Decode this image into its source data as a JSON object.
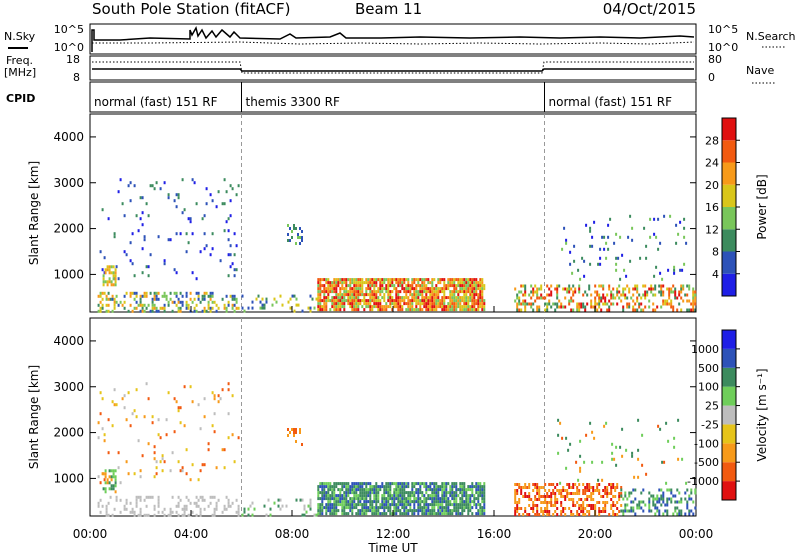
{
  "header": {
    "station": "South Pole Station (fitACF)",
    "beam": "Beam 11",
    "date": "04/Oct/2015"
  },
  "sky_panel": {
    "left_label": "N.Sky",
    "right_label": "N.Search",
    "left_ticks": [
      "10^5",
      "10^0"
    ],
    "right_ticks": [
      "10^5",
      "10^0"
    ]
  },
  "freq_panel": {
    "left_label_1": "Freq.",
    "left_label_2": "[MHz]",
    "right_label": "Nave",
    "left_ticks": [
      "18",
      "8"
    ],
    "right_ticks": [
      "80",
      "0"
    ]
  },
  "cpid": {
    "label": "CPID",
    "segments": [
      {
        "start_h": 0,
        "end_h": 6,
        "text": "normal (fast) 151 RF"
      },
      {
        "start_h": 6,
        "end_h": 18,
        "text": "themis 3300 RF"
      },
      {
        "start_h": 18,
        "end_h": 24,
        "text": "normal (fast) 151 RF"
      }
    ]
  },
  "chart_data": [
    {
      "type": "heatmap",
      "panel": "power",
      "ylabel": "Slant Range [km]",
      "xlim": [
        0,
        24
      ],
      "ylim": [
        180,
        4500
      ],
      "y_ticks": [
        1000,
        2000,
        3000,
        4000
      ],
      "colorbar_label": "Power [dB]",
      "colorbar_ticks": [
        "4",
        "8",
        "12",
        "16",
        "20",
        "24",
        "28"
      ],
      "colorbar_colors": [
        "#1f1fe6",
        "#2d52b8",
        "#3c8b5e",
        "#79c65a",
        "#d9c61a",
        "#f79a1a",
        "#f25a10",
        "#e01010"
      ],
      "scatter_regions": [
        {
          "x": [
            0.3,
            5.9
          ],
          "y": [
            220,
            620
          ],
          "density": 0.35,
          "levels": [
            1,
            2,
            3,
            4,
            5
          ]
        },
        {
          "x": [
            0.3,
            5.9
          ],
          "y": [
            900,
            3100
          ],
          "density": 0.05,
          "levels": [
            0,
            1,
            2
          ]
        },
        {
          "x": [
            0.5,
            1.0
          ],
          "y": [
            800,
            1200
          ],
          "density": 0.55,
          "levels": [
            3,
            4,
            5
          ]
        },
        {
          "x": [
            7.8,
            8.4
          ],
          "y": [
            1700,
            2100
          ],
          "density": 0.3,
          "levels": [
            1,
            2,
            3
          ]
        },
        {
          "x": [
            6.0,
            9.0
          ],
          "y": [
            220,
            560
          ],
          "density": 0.18,
          "levels": [
            1,
            2,
            3,
            4
          ]
        },
        {
          "x": [
            9.0,
            15.6
          ],
          "y": [
            240,
            920
          ],
          "density": 0.82,
          "levels": [
            3,
            4,
            5,
            6,
            7
          ]
        },
        {
          "x": [
            16.8,
            24
          ],
          "y": [
            230,
            780
          ],
          "density": 0.4,
          "levels": [
            2,
            3,
            4,
            5,
            6,
            7
          ]
        },
        {
          "x": [
            18.5,
            23.6
          ],
          "y": [
            900,
            2300
          ],
          "density": 0.06,
          "levels": [
            0,
            1,
            2,
            3
          ]
        }
      ]
    },
    {
      "type": "heatmap",
      "panel": "velocity",
      "xlabel": "Time UT",
      "ylabel": "Slant Range [km]",
      "xlim": [
        0,
        24
      ],
      "ylim": [
        180,
        4500
      ],
      "y_ticks": [
        1000,
        2000,
        3000,
        4000
      ],
      "x_ticks": [
        "00:00",
        "04:00",
        "08:00",
        "12:00",
        "16:00",
        "20:00",
        "00:00"
      ],
      "colorbar_label": "Velocity [m s⁻¹]",
      "colorbar_ticks": [
        "-1000",
        "-500",
        "-100",
        "-25",
        "25",
        "100",
        "500",
        "1000"
      ],
      "colorbar_colors": [
        "#e01010",
        "#f25a10",
        "#f79a1a",
        "#e6c41a",
        "#bdbdbd",
        "#6fce5a",
        "#3c8b5e",
        "#2d52b8",
        "#1f1fe6"
      ],
      "scatter_regions": [
        {
          "x": [
            0.3,
            5.9
          ],
          "y": [
            220,
            620
          ],
          "density": 0.28,
          "levels": [
            4
          ]
        },
        {
          "x": [
            0.3,
            5.9
          ],
          "y": [
            900,
            3100
          ],
          "density": 0.05,
          "levels": [
            1,
            2,
            3,
            4
          ]
        },
        {
          "x": [
            0.5,
            1.0
          ],
          "y": [
            700,
            1200
          ],
          "density": 0.5,
          "levels": [
            5,
            6,
            2
          ]
        },
        {
          "x": [
            7.8,
            8.4
          ],
          "y": [
            1700,
            2100
          ],
          "density": 0.3,
          "levels": [
            1,
            2
          ]
        },
        {
          "x": [
            6.0,
            9.0
          ],
          "y": [
            220,
            560
          ],
          "density": 0.15,
          "levels": [
            4,
            5,
            6
          ]
        },
        {
          "x": [
            9.0,
            15.6
          ],
          "y": [
            240,
            920
          ],
          "density": 0.82,
          "levels": [
            5,
            6,
            6,
            7
          ]
        },
        {
          "x": [
            16.8,
            21.0
          ],
          "y": [
            230,
            900
          ],
          "density": 0.5,
          "levels": [
            0,
            1,
            2,
            2
          ]
        },
        {
          "x": [
            21.0,
            24
          ],
          "y": [
            230,
            780
          ],
          "density": 0.4,
          "levels": [
            5,
            6,
            7
          ]
        },
        {
          "x": [
            18.5,
            23.6
          ],
          "y": [
            900,
            2300
          ],
          "density": 0.06,
          "levels": [
            1,
            2,
            5,
            6
          ]
        }
      ]
    }
  ]
}
